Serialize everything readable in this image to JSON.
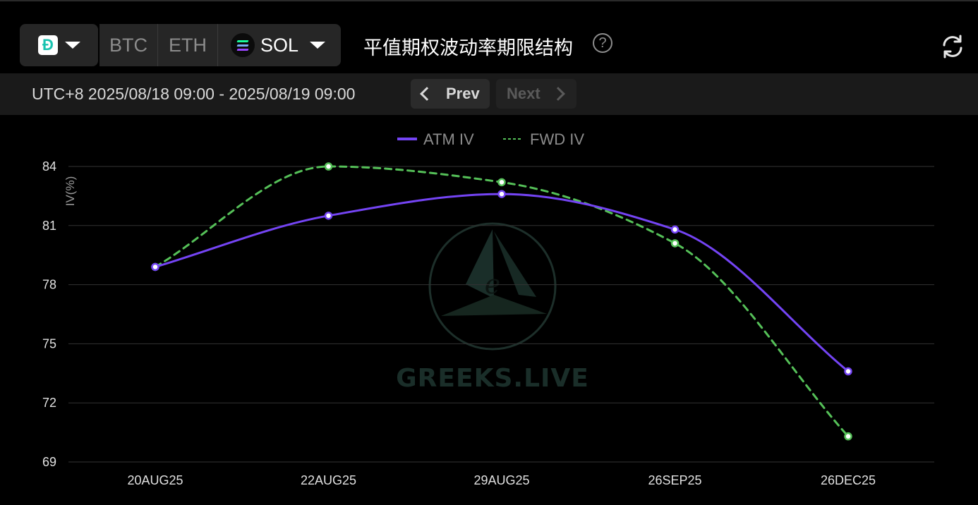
{
  "header": {
    "exchange_icon": "deribit-logo-icon",
    "coins": [
      "BTC",
      "ETH",
      "SOL"
    ],
    "selected_coin": "SOL",
    "title": "平值期权波动率期限结构",
    "help": "?"
  },
  "timebar": {
    "range": "UTC+8 2025/08/18 09:00 - 2025/08/19 09:00",
    "prev_label": "Prev",
    "next_label": "Next"
  },
  "colors": {
    "atm": "#7444f4",
    "fwd": "#55c058",
    "grid": "#333333",
    "accent": "#19c3b0"
  },
  "watermark": "GREEKS.LIVE",
  "chart_data": {
    "type": "line",
    "categories": [
      "20AUG25",
      "22AUG25",
      "29AUG25",
      "26SEP25",
      "26DEC25"
    ],
    "series": [
      {
        "name": "ATM IV",
        "style": "solid",
        "values": [
          78.9,
          81.5,
          82.6,
          80.8,
          73.6
        ]
      },
      {
        "name": "FWD IV",
        "style": "dashed",
        "values": [
          78.9,
          84.0,
          83.2,
          80.1,
          70.3
        ]
      }
    ],
    "ylabel": "IV(%)",
    "ylim": [
      69,
      84
    ],
    "yticks": [
      84,
      81,
      78,
      75,
      72,
      69
    ],
    "grid": true,
    "legend_position": "top-center"
  }
}
